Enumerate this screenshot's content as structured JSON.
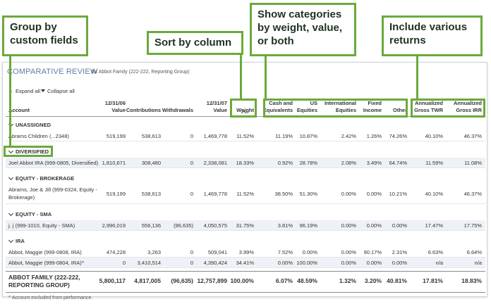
{
  "callouts": [
    {
      "text": [
        "Group by",
        "custom fields"
      ]
    },
    {
      "text": [
        "Sort by column"
      ]
    },
    {
      "text": [
        "Show categories",
        "by weight, value,",
        "or both"
      ]
    },
    {
      "text": [
        "Include various",
        "returns"
      ]
    }
  ],
  "report": {
    "title": "COMPARATIVE REVIEW",
    "subtitle": "for Abbot Family (222-222, Reporting Group)",
    "expand_all": "Expand all",
    "collapse_all": "Collapse all",
    "columns": [
      [
        "Account"
      ],
      [
        "12/31/06",
        "Value"
      ],
      [
        "Contributions"
      ],
      [
        "Withdrawals"
      ],
      [
        "12/31/07",
        "Value"
      ],
      [
        "Weight"
      ],
      [
        "Cash and",
        "Equivalents"
      ],
      [
        "US",
        "Equities"
      ],
      [
        "International",
        "Equities"
      ],
      [
        "Fixed",
        "Income"
      ],
      [
        "Other"
      ],
      [
        "Annualized",
        "Gross TWR"
      ],
      [
        "Annualized",
        "Gross IRR"
      ]
    ],
    "groups": [
      {
        "name": "UNASSIGNED",
        "rows": [
          [
            [
              "Abrams Children (...2348)"
            ],
            "519,199",
            "538,613",
            "0",
            "1,469,778",
            "11.52%",
            "11.19%",
            "10.87%",
            "2.42%",
            "1.26%",
            "74.26%",
            "40.10%",
            "46.37%"
          ]
        ]
      },
      {
        "name": "DIVERSIFIED",
        "rows": [
          [
            [
              "Joel Abbot IRA (999-0805, Diversified)"
            ],
            "1,810,671",
            "308,480",
            "0",
            "2,338,081",
            "18.33%",
            "0.92%",
            "28.78%",
            "2.08%",
            "3.49%",
            "64.74%",
            "11.59%",
            "11.08%"
          ]
        ]
      },
      {
        "name": "EQUITY - BROKERAGE",
        "rows": [
          [
            [
              "Abrams, Joe & Jill (999-0324, Equity -",
              "Brokerage)"
            ],
            "519,199",
            "538,613",
            "0",
            "1,469,778",
            "11.52%",
            "38.50%",
            "51.30%",
            "0.00%",
            "0.00%",
            "10.21%",
            "40.10%",
            "46.37%"
          ]
        ]
      },
      {
        "name": "EQUITY - SMA",
        "rows": [
          [
            [
              "j. j (999-1010, Equity - SMA)"
            ],
            "2,996,019",
            "556,136",
            "(96,635)",
            "4,050,575",
            "31.75%",
            "3.81%",
            "96.19%",
            "0.00%",
            "0.00%",
            "0.00%",
            "17.47%",
            "17.75%"
          ]
        ]
      },
      {
        "name": "IRA",
        "rows": [
          [
            [
              "Abbot, Maggie (999-0808, IRA)"
            ],
            "474,228",
            "3,263",
            "0",
            "509,041",
            "3.99%",
            "7.52%",
            "0.00%",
            "0.00%",
            "90.17%",
            "2.31%",
            "6.63%",
            "6.64%"
          ],
          [
            [
              "Abbot, Maggie (999-0804, IRA)^"
            ],
            "0",
            "3,410,514",
            "0",
            "4,390,424",
            "34.41%",
            "0.00%",
            "100.00%",
            "0.00%",
            "0.00%",
            "0.00%",
            "n/a",
            "n/a"
          ]
        ]
      }
    ],
    "total": [
      [
        "ABBOT FAMILY (222-222,",
        "REPORTING GROUP)"
      ],
      "5,800,117",
      "4,817,005",
      "(96,635)",
      "12,757,899",
      "100.00%",
      "6.07%",
      "48.59%",
      "1.32%",
      "3.20%",
      "40.81%",
      "17.81%",
      "18.83%"
    ],
    "footnote": "^ Account excluded from performance."
  }
}
